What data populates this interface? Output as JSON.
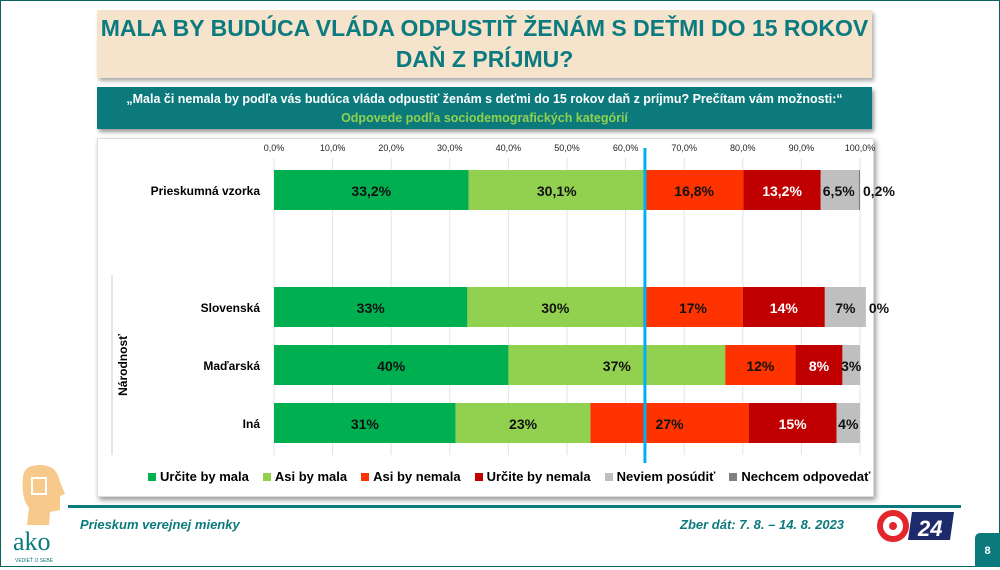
{
  "title": "MALA BY BUDÚCA VLÁDA ODPUSTIŤ ŽENÁM S DEŤMI DO 15 ROKOV DAŇ Z PRÍJMU?",
  "question": "„Mala či nemala by podľa vás budúca vláda odpustiť ženám s deťmi do 15 rokov daň z príjmu? Prečítam vám možnosti:“",
  "subtitle": "Odpovede podľa sociodemografických kategórií",
  "footer": {
    "left": "Prieskum verejnej mienky",
    "right": "Zber dát: 7. 8. – 14. 8. 2023",
    "page": "8",
    "logo_text": "ako",
    "logo_tagline": "VEDIEŤ O SEBE",
    "broadcaster": "24"
  },
  "chart_data": {
    "type": "bar",
    "orientation": "horizontal-stacked-100",
    "xlim": [
      0,
      100
    ],
    "ticks": [
      "0,0%",
      "10,0%",
      "20,0%",
      "30,0%",
      "40,0%",
      "50,0%",
      "60,0%",
      "70,0%",
      "80,0%",
      "90,0%",
      "100,0%"
    ],
    "group_label": "Národnosť",
    "reference_line": 63.3,
    "legend_position": "bottom",
    "categories": [
      "Prieskumná vzorka",
      "Slovenská",
      "Maďarská",
      "Iná"
    ],
    "series": [
      {
        "name": "Určite by mala",
        "color": "#00b050",
        "values": [
          33.2,
          33,
          40,
          31
        ],
        "labels": [
          "33,2%",
          "33%",
          "40%",
          "31%"
        ]
      },
      {
        "name": "Asi by mala",
        "color": "#92d050",
        "values": [
          30.1,
          30,
          37,
          23
        ],
        "labels": [
          "30,1%",
          "30%",
          "37%",
          "23%"
        ]
      },
      {
        "name": "Asi by nemala",
        "color": "#ff3300",
        "values": [
          16.8,
          17,
          12,
          27
        ],
        "labels": [
          "16,8%",
          "17%",
          "12%",
          "27%"
        ]
      },
      {
        "name": "Určite by nemala",
        "color": "#c00000",
        "values": [
          13.2,
          14,
          8,
          15
        ],
        "labels": [
          "13,2%",
          "14%",
          "8%",
          "15%"
        ]
      },
      {
        "name": "Neviem posúdiť",
        "color": "#bfbfbf",
        "values": [
          6.5,
          7,
          3,
          4
        ],
        "labels": [
          "6,5%",
          "7%",
          "3%",
          "4%"
        ]
      },
      {
        "name": "Nechcem odpovedať",
        "color": "#808080",
        "values": [
          0.2,
          0,
          0,
          0
        ],
        "labels": [
          "0,2%",
          "0%",
          "",
          ""
        ]
      }
    ]
  }
}
